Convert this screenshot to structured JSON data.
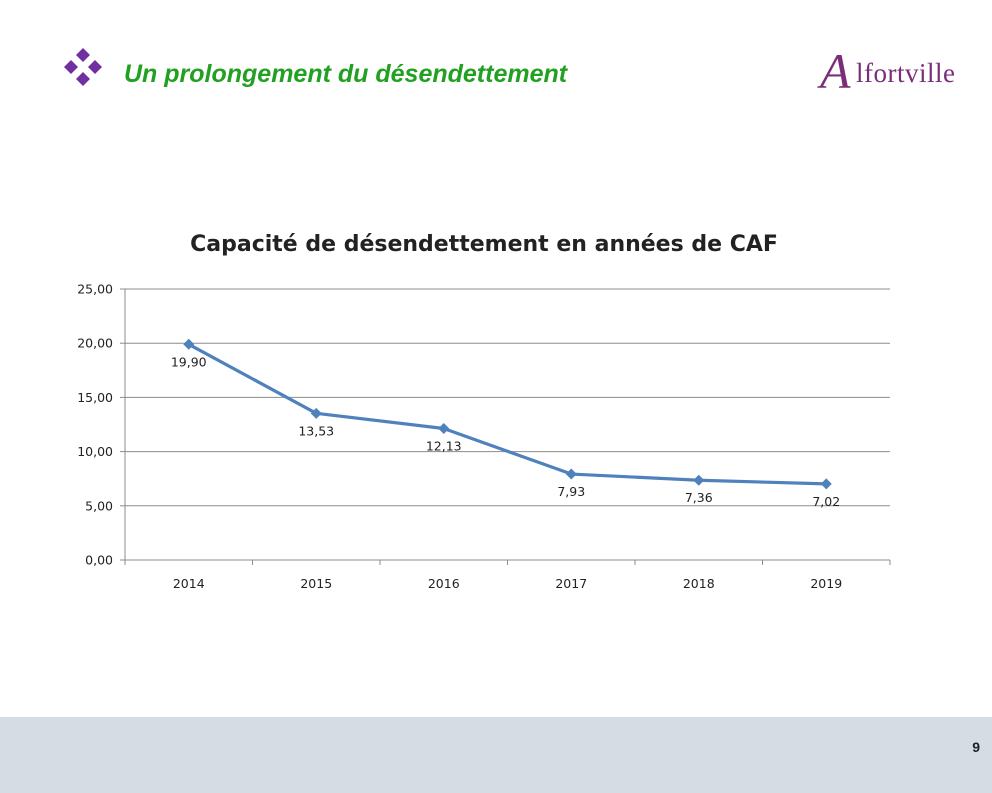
{
  "header": {
    "title": "Un prolongement du désendettement",
    "bullet_icon": "four-diamonds-icon",
    "bullet_color": "#7030a0",
    "title_color": "#22a022"
  },
  "logo": {
    "initial": "A",
    "rest": "lfortville",
    "color": "#7a2e7a"
  },
  "chart_data": {
    "type": "line",
    "title": "Capacité de désendettement en années de CAF",
    "categories": [
      "2014",
      "2015",
      "2016",
      "2017",
      "2018",
      "2019"
    ],
    "series": [
      {
        "values": [
          19.9,
          13.53,
          12.13,
          7.93,
          7.36,
          7.02
        ],
        "labels": [
          "19,90",
          "13,53",
          "12,13",
          "7,93",
          "7,36",
          "7,02"
        ],
        "color": "#4f81bd",
        "marker": "diamond"
      }
    ],
    "ylim": [
      0,
      25
    ],
    "yticks": [
      "0,00",
      "5,00",
      "10,00",
      "15,00",
      "20,00",
      "25,00"
    ],
    "grid": true,
    "legend": "none"
  },
  "footer": {
    "page_number": "9"
  }
}
